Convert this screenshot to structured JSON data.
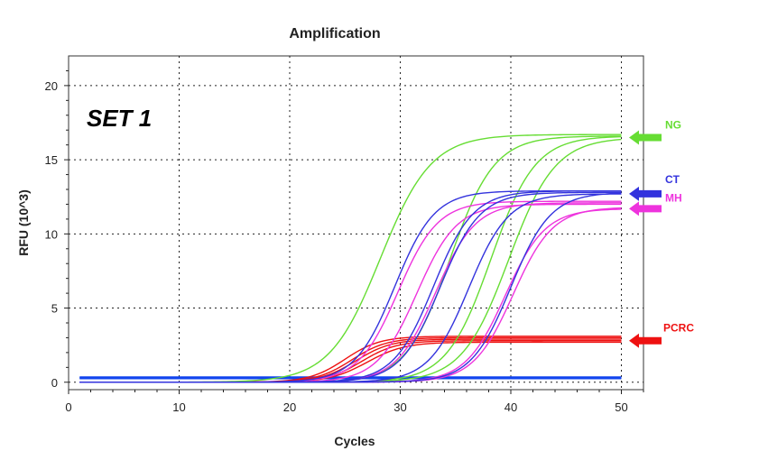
{
  "chart_data": {
    "type": "line",
    "title": "Amplification",
    "xlabel": "Cycles",
    "ylabel": "RFU (10^3)",
    "annotation": "SET 1",
    "xlim": [
      0,
      52
    ],
    "ylim": [
      -0.5,
      22
    ],
    "xticks": [
      0,
      10,
      20,
      30,
      40,
      50
    ],
    "yticks": [
      0,
      5,
      10,
      15,
      20
    ],
    "grid": true,
    "legend": [
      {
        "label": "NG",
        "color": "#66dd33",
        "arrow_y": 16.5
      },
      {
        "label": "CT",
        "color": "#3333dd",
        "arrow_y": 12.7
      },
      {
        "label": "MH",
        "color": "#ee33dd",
        "arrow_y": 11.7
      },
      {
        "label": "PCRC",
        "color": "#ee1111",
        "arrow_y": 2.8
      }
    ],
    "colors": {
      "NG": "#66dd33",
      "CT": "#3333dd",
      "MH": "#ee33dd",
      "PCRC": "#ee1111",
      "baseline": "#1144ee"
    },
    "x_range": [
      1,
      50
    ],
    "curves": [
      {
        "group": "NG",
        "plateau": 16.7,
        "midpoint": 28.2,
        "slope": 2.3
      },
      {
        "group": "NG",
        "plateau": 16.6,
        "midpoint": 34.5,
        "slope": 2.0
      },
      {
        "group": "NG",
        "plateau": 16.6,
        "midpoint": 38.2,
        "slope": 2.0
      },
      {
        "group": "NG",
        "plateau": 16.5,
        "midpoint": 39.8,
        "slope": 2.1
      },
      {
        "group": "CT",
        "plateau": 12.9,
        "midpoint": 29.5,
        "slope": 1.8
      },
      {
        "group": "CT",
        "plateau": 12.9,
        "midpoint": 33.0,
        "slope": 1.8
      },
      {
        "group": "CT",
        "plateau": 12.8,
        "midpoint": 33.6,
        "slope": 1.8
      },
      {
        "group": "CT",
        "plateau": 12.7,
        "midpoint": 36.2,
        "slope": 1.8
      },
      {
        "group": "CT",
        "plateau": 12.8,
        "midpoint": 40.0,
        "slope": 1.8
      },
      {
        "group": "MH",
        "plateau": 12.2,
        "midpoint": 29.8,
        "slope": 1.8
      },
      {
        "group": "MH",
        "plateau": 12.0,
        "midpoint": 31.5,
        "slope": 1.8
      },
      {
        "group": "MH",
        "plateau": 12.1,
        "midpoint": 33.2,
        "slope": 1.8
      },
      {
        "group": "MH",
        "plateau": 11.7,
        "midpoint": 39.5,
        "slope": 1.8
      },
      {
        "group": "MH",
        "plateau": 11.8,
        "midpoint": 40.2,
        "slope": 1.8
      },
      {
        "group": "PCRC",
        "plateau": 3.1,
        "midpoint": 25.0,
        "slope": 1.6
      },
      {
        "group": "PCRC",
        "plateau": 3.0,
        "midpoint": 25.6,
        "slope": 1.6
      },
      {
        "group": "PCRC",
        "plateau": 2.9,
        "midpoint": 26.0,
        "slope": 1.6
      },
      {
        "group": "PCRC",
        "plateau": 2.8,
        "midpoint": 26.5,
        "slope": 1.6
      },
      {
        "group": "PCRC",
        "plateau": 2.7,
        "midpoint": 27.0,
        "slope": 1.7
      }
    ],
    "baselines": [
      {
        "group": "baseline",
        "y": 0.35
      },
      {
        "group": "baseline",
        "y": 0.3
      },
      {
        "group": "baseline",
        "y": 0.25
      }
    ]
  }
}
